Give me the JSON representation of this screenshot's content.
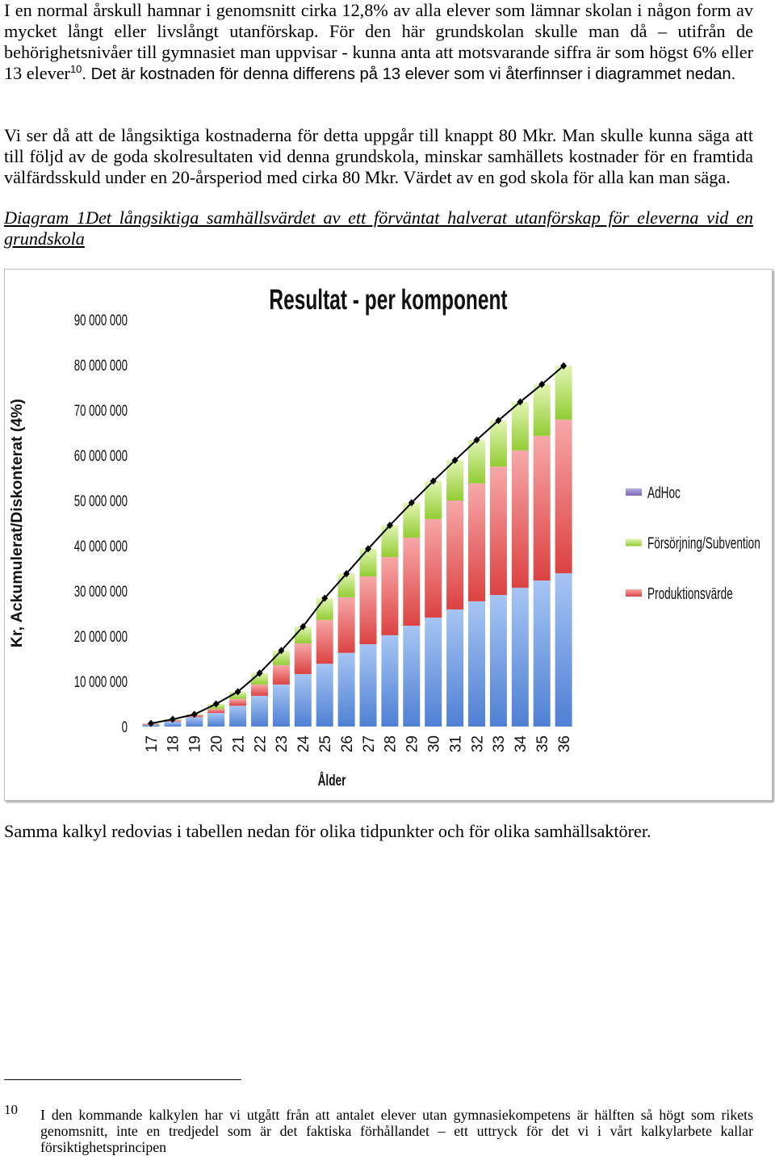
{
  "document": {
    "paragraph1": {
      "text_serif": "I en normal årskull hamnar i genomsnitt cirka 12,8% av alla elever som lämnar skolan i någon form av mycket långt eller livslångt utanförskap. För den här grundskolan skulle man då – utifrån de behörighetsnivåer till gymnasiet man uppvisar - kunna anta att motsvarande siffra är som högst 6% eller 13 elever",
      "footnote_ref": "10",
      "text_sans": ". Det är kostnaden för denna differens på 13 elever som vi återfinnser i diagrammet nedan."
    },
    "paragraph2": "Vi ser då att de långsiktiga kostnaderna för detta uppgår till knappt 80 Mkr. Man skulle kunna säga att till följd av de goda skolresultaten vid denna grundskola, minskar samhällets kostnader för en framtida välfärdsskuld under en 20-årsperiod med cirka 80 Mkr. Värdet av en god skola för alla kan man säga.",
    "caption": "Diagram 1Det långsiktiga samhällsvärdet av ett förväntat halverat utanförskap för eleverna vid en grundskola",
    "paragraph3": "Samma kalkyl redovias i tabellen nedan för olika tidpunkter och för olika samhällsaktörer.",
    "footnote": {
      "number": "10",
      "text": "I den kommande kalkylen har vi utgått från att antalet elever utan gymnasiekompetens är hälften så högt som rikets genomsnitt, inte en tredjedel som är det faktiska förhållandet – ett uttryck för det vi i vårt kalkylarbete kallar försiktighetsprincipen"
    }
  },
  "chart_data": {
    "type": "bar",
    "stacked": true,
    "title": "Resultat - per komponent",
    "xlabel": "Ålder",
    "ylabel": "Kr, Ackumulerat/Diskonterat (4%)",
    "categories": [
      "17",
      "18",
      "19",
      "20",
      "21",
      "22",
      "23",
      "24",
      "25",
      "26",
      "27",
      "28",
      "29",
      "30",
      "31",
      "32",
      "33",
      "34",
      "35",
      "36"
    ],
    "y_ticks": [
      "0",
      "10 000 000",
      "20 000 000",
      "30 000 000",
      "40 000 000",
      "50 000 000",
      "60 000 000",
      "70 000 000",
      "80 000 000",
      "90 000 000"
    ],
    "ylim": [
      0,
      90000000
    ],
    "grid": false,
    "legend_position": "right",
    "series": [
      {
        "type": "bar",
        "color": "#4f80d4",
        "color_light": "#a6c5f3",
        "values": [
          400000,
          1100000,
          2100000,
          3000000,
          4600000,
          6800000,
          9300000,
          11600000,
          13900000,
          16300000,
          18200000,
          20200000,
          22300000,
          24100000,
          25900000,
          27700000,
          29100000,
          30700000,
          32300000,
          33900000
        ]
      },
      {
        "type": "bar",
        "name": "Produktionsvärde",
        "color": "#dc4242",
        "color_light": "#f7a8a8",
        "values": [
          200000,
          300000,
          400000,
          900000,
          1500000,
          2500000,
          4300000,
          6800000,
          9700000,
          12300000,
          15000000,
          17300000,
          19500000,
          21800000,
          24100000,
          26100000,
          28400000,
          30400000,
          32000000,
          34000000
        ]
      },
      {
        "type": "bar",
        "name": "Försörjning/Subvention",
        "color": "#93cd34",
        "color_light": "#e2f5b4",
        "values": [
          100000,
          200000,
          200000,
          1100000,
          1600000,
          2500000,
          3200000,
          3700000,
          4800000,
          5200000,
          6100000,
          7000000,
          7700000,
          8400000,
          8900000,
          9600000,
          10200000,
          10700000,
          11400000,
          11900000
        ]
      },
      {
        "type": "bar",
        "name": "AdHoc",
        "color": "#7b67b6",
        "color_light": "#b9ade3",
        "values": [
          0,
          0,
          0,
          0,
          0,
          0,
          0,
          0,
          0,
          0,
          0,
          0,
          0,
          0,
          0,
          0,
          0,
          0,
          0,
          0
        ]
      },
      {
        "type": "line",
        "marker": "diamond",
        "color": "#000000",
        "values": [
          700000,
          1600000,
          2700000,
          5000000,
          7700000,
          11800000,
          16800000,
          22100000,
          28400000,
          33800000,
          39300000,
          44500000,
          49500000,
          54300000,
          58900000,
          63400000,
          67700000,
          71800000,
          75700000,
          79800000
        ]
      }
    ]
  }
}
